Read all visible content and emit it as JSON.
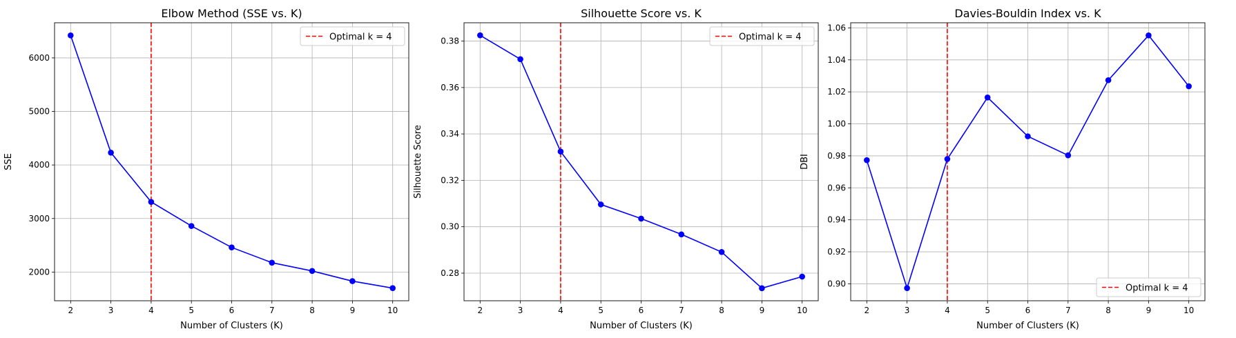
{
  "chart_data": [
    {
      "type": "line",
      "title": "Elbow Method (SSE vs. K)",
      "xlabel": "Number of Clusters (K)",
      "ylabel": "SSE",
      "x": [
        2,
        3,
        4,
        5,
        6,
        7,
        8,
        9,
        10
      ],
      "series": [
        {
          "values": [
            6420,
            4230,
            3310,
            2860,
            2460,
            2175,
            2020,
            1830,
            1700
          ],
          "color": "#0000ff"
        }
      ],
      "xticks": [
        2,
        3,
        4,
        5,
        6,
        7,
        8,
        9,
        10
      ],
      "yticks": [
        2000,
        3000,
        4000,
        5000,
        6000
      ],
      "ytick_labels": [
        "2000",
        "3000",
        "4000",
        "5000",
        "6000"
      ],
      "xlim": [
        1.6,
        10.4
      ],
      "ylim": [
        1464,
        6656
      ],
      "vline": {
        "x": 4,
        "label": "Optimal k = 4",
        "color": "#ff0000"
      },
      "legend": "upper right",
      "grid": true
    },
    {
      "type": "line",
      "title": "Silhouette Score vs. K",
      "xlabel": "Number of Clusters (K)",
      "ylabel": "Silhouette Score",
      "x": [
        2,
        3,
        4,
        5,
        6,
        7,
        8,
        9,
        10
      ],
      "series": [
        {
          "values": [
            0.3825,
            0.3722,
            0.3324,
            0.3096,
            0.3035,
            0.2967,
            0.2891,
            0.2735,
            0.2785
          ],
          "color": "#0000ff"
        }
      ],
      "xticks": [
        2,
        3,
        4,
        5,
        6,
        7,
        8,
        9,
        10
      ],
      "yticks": [
        0.28,
        0.3,
        0.32,
        0.34,
        0.36,
        0.38
      ],
      "ytick_labels": [
        "0.28",
        "0.30",
        "0.32",
        "0.34",
        "0.36",
        "0.38"
      ],
      "xlim": [
        1.6,
        10.4
      ],
      "ylim": [
        0.2681,
        0.3879
      ],
      "vline": {
        "x": 4,
        "label": "Optimal k = 4",
        "color": "#ff0000"
      },
      "legend": "upper right",
      "grid": true
    },
    {
      "type": "line",
      "title": "Davies-Bouldin Index vs. K",
      "xlabel": "Number of Clusters (K)",
      "ylabel": "DBI",
      "x": [
        2,
        3,
        4,
        5,
        6,
        7,
        8,
        9,
        10
      ],
      "series": [
        {
          "values": [
            0.9773,
            0.8973,
            0.978,
            1.0165,
            0.9922,
            0.9803,
            1.0273,
            1.0553,
            1.0235
          ],
          "color": "#0000ff"
        }
      ],
      "xticks": [
        2,
        3,
        4,
        5,
        6,
        7,
        8,
        9,
        10
      ],
      "yticks": [
        0.9,
        0.92,
        0.94,
        0.96,
        0.98,
        1.0,
        1.02,
        1.04,
        1.06
      ],
      "ytick_labels": [
        "0.90",
        "0.92",
        "0.94",
        "0.96",
        "0.98",
        "1.00",
        "1.02",
        "1.04",
        "1.06"
      ],
      "xlim": [
        1.6,
        10.4
      ],
      "ylim": [
        0.8894,
        1.0632
      ],
      "vline": {
        "x": 4,
        "label": "Optimal k = 4",
        "color": "#ff0000"
      },
      "legend": "lower right",
      "grid": true
    }
  ]
}
